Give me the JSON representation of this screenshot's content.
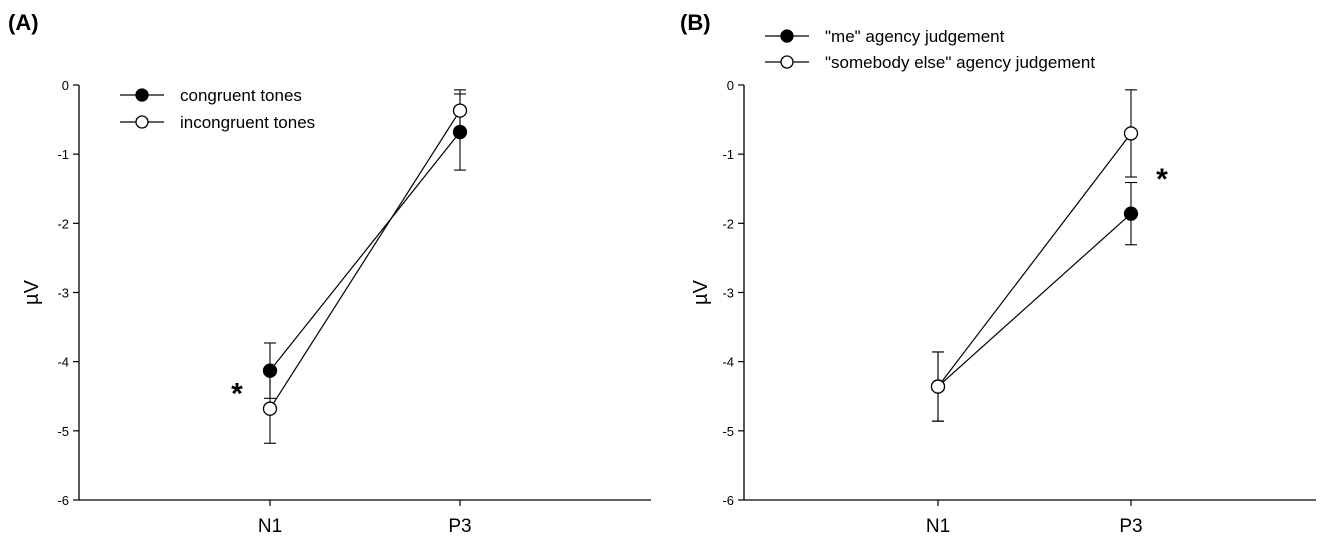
{
  "chart_data": [
    {
      "type": "line",
      "panel_label": "(A)",
      "categories": [
        "N1",
        "P3"
      ],
      "ylabel": "µV",
      "ylim": [
        -6,
        0
      ],
      "yticks": [
        0,
        -1,
        -2,
        -3,
        -4,
        -5,
        -6
      ],
      "legend_position": "top-left",
      "series": [
        {
          "name": "congruent tones",
          "marker": "filled-circle",
          "values": [
            -4.13,
            -0.68
          ],
          "errors": [
            0.4,
            0.55
          ]
        },
        {
          "name": "incongruent tones",
          "marker": "open-circle",
          "values": [
            -4.68,
            -0.37
          ],
          "errors": [
            0.5,
            0.3
          ]
        }
      ],
      "annotations": [
        {
          "text": "*",
          "category": "N1",
          "y": -4.4
        }
      ]
    },
    {
      "type": "line",
      "panel_label": "(B)",
      "categories": [
        "N1",
        "P3"
      ],
      "ylabel": "µV",
      "ylim": [
        -6,
        0
      ],
      "yticks": [
        0,
        -1,
        -2,
        -3,
        -4,
        -5,
        -6
      ],
      "legend_position": "top-left",
      "series": [
        {
          "name": "\"me\" agency judgement",
          "marker": "filled-circle",
          "values": [
            -4.36,
            -1.86
          ],
          "errors": [
            0.5,
            0.45
          ]
        },
        {
          "name": "\"somebody else\" agency judgement",
          "marker": "open-circle",
          "values": [
            -4.36,
            -0.7
          ],
          "errors": [
            0.5,
            0.63
          ]
        }
      ],
      "annotations": [
        {
          "text": "*",
          "category": "P3",
          "y": -1.3
        }
      ]
    }
  ]
}
